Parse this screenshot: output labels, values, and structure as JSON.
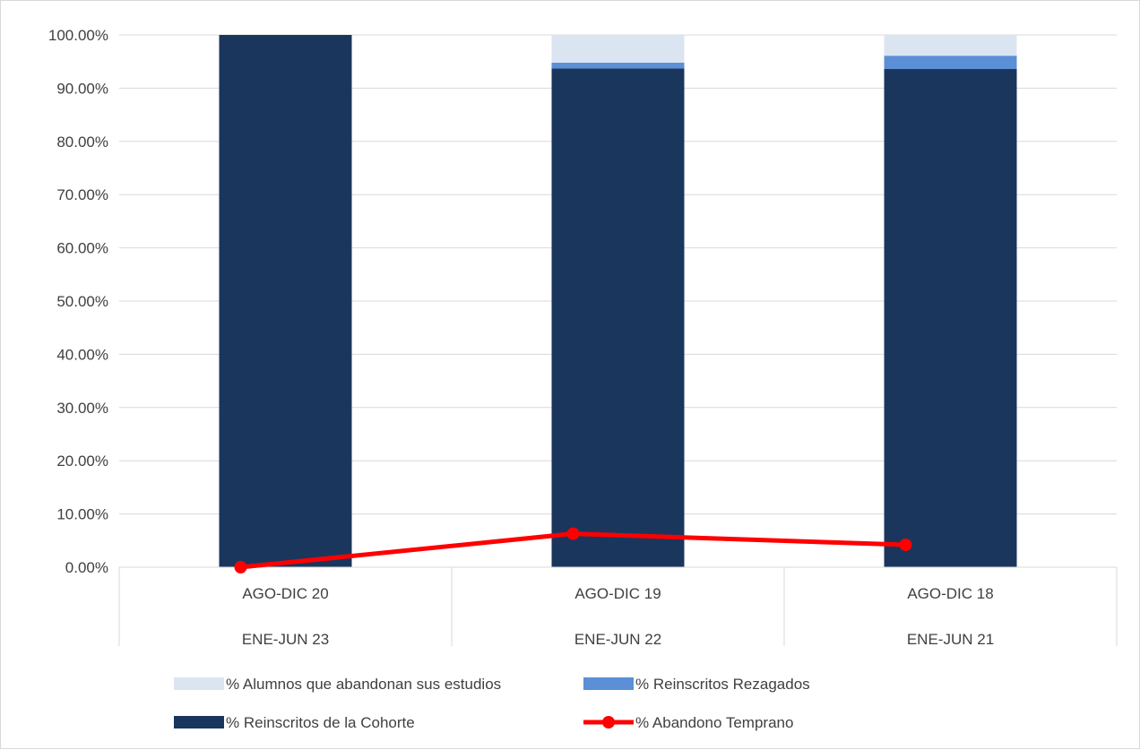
{
  "chart_data": {
    "type": "bar",
    "stacked": true,
    "categories": [
      {
        "level1": "AGO-DIC 20",
        "level2": "ENE-JUN 23"
      },
      {
        "level1": "AGO-DIC 19",
        "level2": "ENE-JUN 22"
      },
      {
        "level1": "AGO-DIC 18",
        "level2": "ENE-JUN 21"
      }
    ],
    "series": [
      {
        "name": "% Reinscritos de la Cohorte",
        "kind": "bar",
        "color": "#1a365d",
        "values": [
          100.0,
          93.7,
          93.6
        ]
      },
      {
        "name": "% Reinscritos Rezagados",
        "kind": "bar",
        "color": "#5b8fd6",
        "values": [
          0.0,
          1.1,
          2.5
        ]
      },
      {
        "name": "% Alumnos que abandonan sus estudios",
        "kind": "bar",
        "color": "#dbe5f2",
        "values": [
          0.0,
          5.2,
          3.9
        ]
      },
      {
        "name": "% Abandono Temprano",
        "kind": "line",
        "color": "#ff0000",
        "values": [
          0.0,
          6.3,
          4.2
        ]
      }
    ],
    "y_ticks": [
      "0.00%",
      "10.00%",
      "20.00%",
      "30.00%",
      "40.00%",
      "50.00%",
      "60.00%",
      "70.00%",
      "80.00%",
      "90.00%",
      "100.00%"
    ],
    "ylim": [
      0,
      100
    ],
    "grid": true,
    "legend_position": "bottom",
    "legend_order": [
      "% Alumnos que abandonan sus estudios",
      "% Reinscritos Rezagados",
      "% Reinscritos de la Cohorte",
      "% Abandono Temprano"
    ]
  }
}
